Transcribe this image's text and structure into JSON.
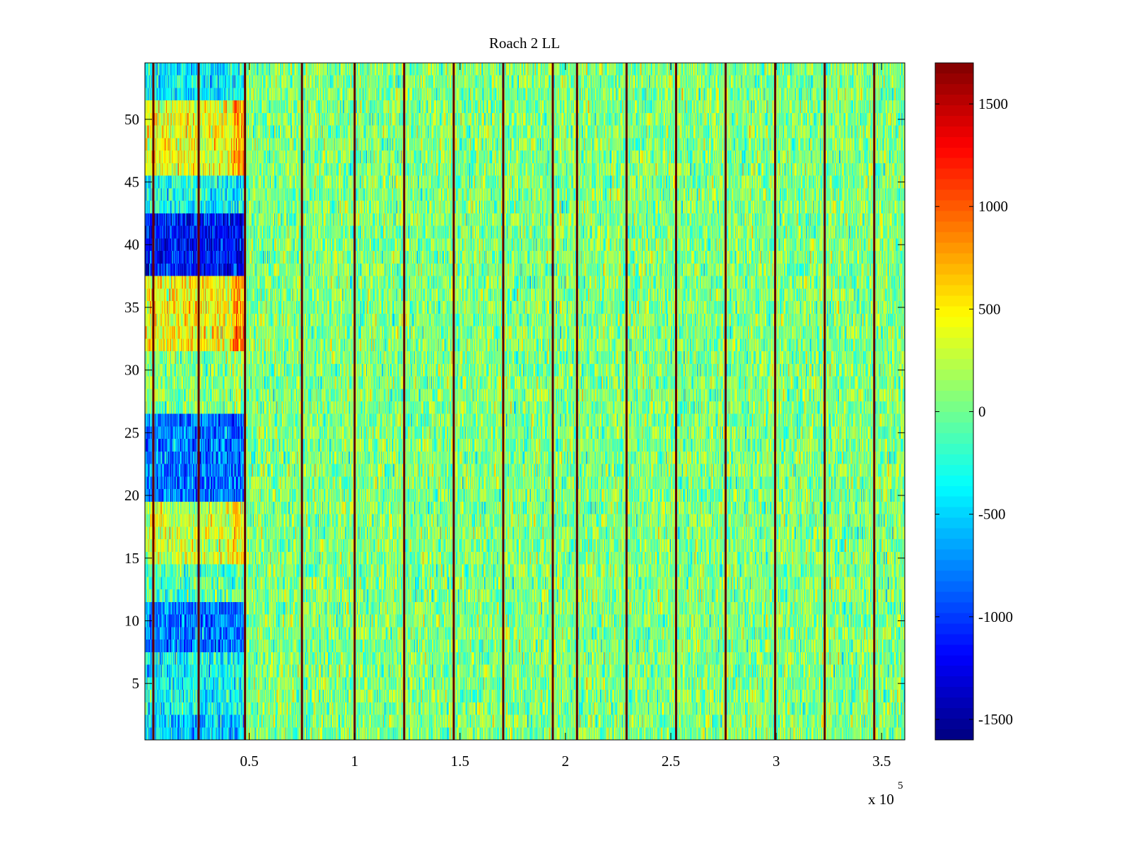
{
  "chart_data": {
    "type": "heatmap",
    "title": "Roach 2 LL",
    "xlabel": "",
    "ylabel": "",
    "x_multiplier_label": "x 10",
    "x_multiplier_exponent": "5",
    "xlim": [
      500,
      361000
    ],
    "ylim": [
      0.5,
      54.5
    ],
    "x_ticks": [
      {
        "value": 50000,
        "label": "0.5"
      },
      {
        "value": 100000,
        "label": "1"
      },
      {
        "value": 150000,
        "label": "1.5"
      },
      {
        "value": 200000,
        "label": "2"
      },
      {
        "value": 250000,
        "label": "2.5"
      },
      {
        "value": 300000,
        "label": "3"
      },
      {
        "value": 350000,
        "label": "3.5"
      }
    ],
    "y_ticks": [
      {
        "value": 5,
        "label": "5"
      },
      {
        "value": 10,
        "label": "10"
      },
      {
        "value": 15,
        "label": "15"
      },
      {
        "value": 20,
        "label": "20"
      },
      {
        "value": 25,
        "label": "25"
      },
      {
        "value": 30,
        "label": "30"
      },
      {
        "value": 35,
        "label": "35"
      },
      {
        "value": 40,
        "label": "40"
      },
      {
        "value": 45,
        "label": "45"
      },
      {
        "value": 50,
        "label": "50"
      }
    ],
    "colorbar": {
      "colormap": "jet",
      "clim": [
        -1600,
        1700
      ],
      "ticks": [
        {
          "value": 1500,
          "label": "1500"
        },
        {
          "value": 1000,
          "label": "1000"
        },
        {
          "value": 500,
          "label": "500"
        },
        {
          "value": 0,
          "label": "0"
        },
        {
          "value": -500,
          "label": "-500"
        },
        {
          "value": -1000,
          "label": "-1000"
        },
        {
          "value": -1500,
          "label": "-1500"
        }
      ]
    },
    "rows": 54,
    "baseline_value": 0,
    "noise_amplitude": 260,
    "stripe_x_positions": [
      4500,
      26000,
      48000,
      75000,
      100000,
      123500,
      147000,
      170500,
      194000,
      205500,
      229000,
      252500,
      276000,
      299500,
      323000,
      346500
    ],
    "stripe_value": 1700,
    "early_region": {
      "x_end": 48000,
      "row_offsets": [
        {
          "rows": [
            1,
            2
          ],
          "value": -550
        },
        {
          "rows": [
            3,
            4,
            5,
            6,
            7
          ],
          "value": -350
        },
        {
          "rows": [
            8,
            9,
            10,
            11
          ],
          "value": -800
        },
        {
          "rows": [
            12,
            13,
            14
          ],
          "value": -100
        },
        {
          "rows": [
            15,
            16,
            17,
            18,
            19
          ],
          "value": 300
        },
        {
          "rows": [
            20,
            21,
            22,
            23,
            24,
            25,
            26
          ],
          "value": -800
        },
        {
          "rows": [
            27,
            28,
            29,
            30,
            31
          ],
          "value": 50
        },
        {
          "rows": [
            32,
            33,
            34,
            35,
            36,
            37
          ],
          "value": 450
        },
        {
          "rows": [
            38,
            39,
            40,
            41,
            42
          ],
          "value": -1150
        },
        {
          "rows": [
            43,
            44,
            45
          ],
          "value": -300
        },
        {
          "rows": [
            46,
            47,
            48,
            49,
            50,
            51
          ],
          "value": 400
        },
        {
          "rows": [
            52,
            53,
            54
          ],
          "value": -400
        }
      ]
    }
  }
}
